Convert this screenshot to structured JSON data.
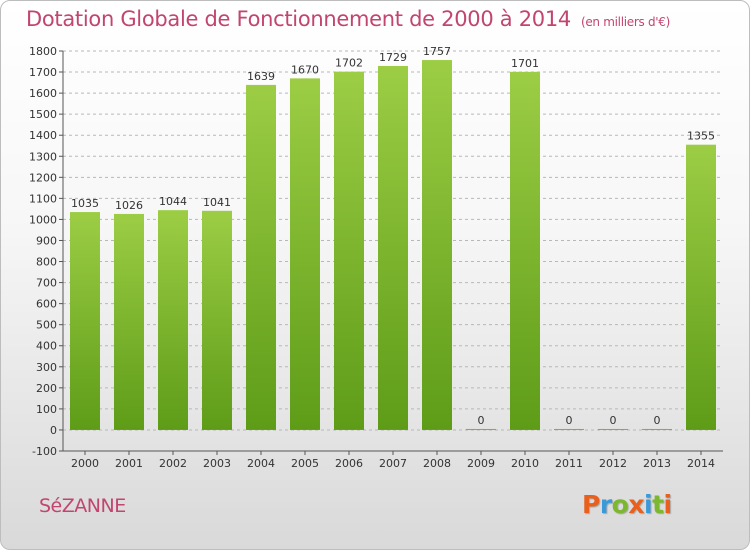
{
  "header": {
    "title": "Dotation Globale de Fonctionnement de 2000 à 2014",
    "unit": "(en milliers d'€)"
  },
  "footer": {
    "commune": "SéZANNE",
    "logo_letters": [
      {
        "char": "P",
        "color": "#e8601c"
      },
      {
        "char": "r",
        "color": "#3a9ad9"
      },
      {
        "char": "o",
        "color": "#7cb82f"
      },
      {
        "char": "x",
        "color": "#e8601c"
      },
      {
        "char": "i",
        "color": "#3a9ad9"
      },
      {
        "char": "t",
        "color": "#7cb82f"
      },
      {
        "char": "i",
        "color": "#e8601c"
      }
    ]
  },
  "colors": {
    "title": "#c2456f",
    "bar_light": "#9ccd45",
    "bar_dark": "#5e9c18",
    "grid": "#b8b8b8",
    "axis": "#555555"
  },
  "chart_data": {
    "type": "bar",
    "categories": [
      "2000",
      "2001",
      "2002",
      "2003",
      "2004",
      "2005",
      "2006",
      "2007",
      "2008",
      "2009",
      "2010",
      "2011",
      "2012",
      "2013",
      "2014"
    ],
    "values": [
      1035,
      1026,
      1044,
      1041,
      1639,
      1670,
      1702,
      1729,
      1757,
      0,
      1701,
      0,
      0,
      0,
      1355
    ],
    "ylim": [
      -100,
      1800
    ],
    "yticks": [
      -100,
      0,
      100,
      200,
      300,
      400,
      500,
      600,
      700,
      800,
      900,
      1000,
      1100,
      1200,
      1300,
      1400,
      1500,
      1600,
      1700,
      1800
    ],
    "grid": true,
    "grid_style": "dashed-horizontal"
  }
}
